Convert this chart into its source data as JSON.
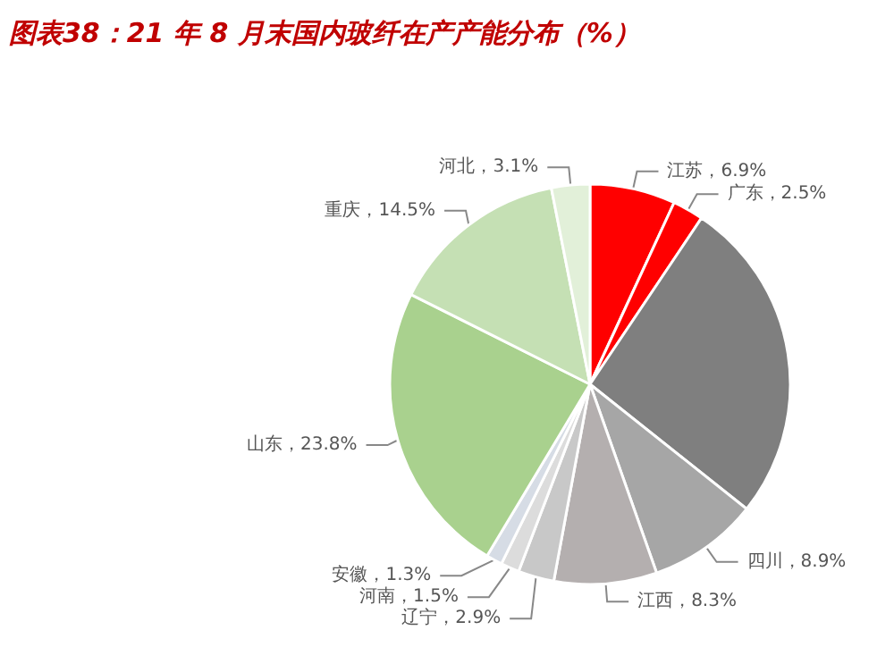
{
  "chart_data": {
    "type": "pie",
    "title": "图表38：21 年 8 月末国内玻纤在产产能分布（%）",
    "categories": [
      "江苏",
      "广东",
      null,
      "四川",
      "江西",
      "辽宁",
      "河南",
      "安徽",
      "山东",
      "重庆",
      "河北"
    ],
    "values": [
      6.9,
      2.5,
      26.3,
      8.9,
      8.3,
      2.9,
      1.5,
      1.3,
      23.8,
      14.5,
      3.1
    ],
    "value_labels": [
      "6.9%",
      "2.5%",
      null,
      "8.9%",
      "8.3%",
      "2.9%",
      "1.5%",
      "1.3%",
      "23.8%",
      "14.5%",
      "3.1%"
    ],
    "colors": [
      "#ff0000",
      "#ff0000",
      "#7f7f7f",
      "#a6a6a6",
      "#b4afaf",
      "#c8c8c8",
      "#dcdcdc",
      "#d6dce5",
      "#a9d18e",
      "#c5e0b4",
      "#e2f0d9"
    ]
  }
}
